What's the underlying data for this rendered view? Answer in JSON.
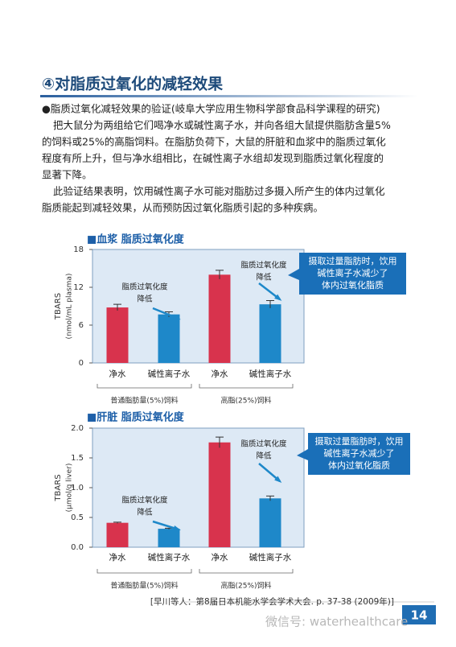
{
  "header": {
    "title": "④对脂质过氧化的减轻效果"
  },
  "paragraphs": [
    "●脂质过氧化减轻效果的验证(岐阜大学应用生物科学部食品科学课程的研究)",
    "把大鼠分为两组给它们喝净水或碱性离子水，并向各组大鼠提供脂肪含量5%",
    "的饲料或25%的高脂饲料。在脂肪负荷下，大鼠的肝脏和血浆中的脂质过氧化",
    "程度有所上升，但与净水组相比，在碱性离子水组却发现到脂质过氧化程度的",
    "显著下降。",
    "此验证结果表明，饮用碱性离子水可能对脂肪过多摄入所产生的体内过氧化",
    "脂质能起到减轻效果，从而预防因过氧化脂质引起的多种疾病。"
  ],
  "chart_data": [
    {
      "type": "bar",
      "title": "■血浆 脂质过氧化度",
      "y_label": "TBARS",
      "y_unit": "(nmol/mL plasma)",
      "categories": [
        "净水",
        "碱性离子水",
        "净水",
        "碱性离子水"
      ],
      "group_labels": [
        "普通脂肪量(5%)饲料",
        "高脂(25%)饲料"
      ],
      "values": [
        8.8,
        7.7,
        14.0,
        9.3
      ],
      "errors": [
        0.5,
        0.4,
        0.7,
        0.6
      ],
      "colors": [
        "#d8334d",
        "#1e88c9",
        "#d8334d",
        "#1e88c9"
      ],
      "ylim": [
        0,
        18
      ],
      "yticks": [
        0,
        6,
        12,
        18
      ],
      "annotations": [
        [
          "脂质过氧化度",
          "降低"
        ],
        [
          "脂质过氧化度",
          "降低"
        ]
      ],
      "callout": [
        "摄取过量脂肪时，饮用",
        "碱性离子水减少了",
        "体内过氧化脂质"
      ]
    },
    {
      "type": "bar",
      "title": "■肝脏 脂质过氧化度",
      "y_label": "TBARS",
      "y_unit": "(μmol/g liver)",
      "categories": [
        "净水",
        "碱性离子水",
        "净水",
        "碱性离子水"
      ],
      "group_labels": [
        "普通脂肪量(5%)饲料",
        "高脂(25%)饲料"
      ],
      "values": [
        0.41,
        0.31,
        1.76,
        0.82
      ],
      "errors": [
        0.01,
        0.01,
        0.09,
        0.04
      ],
      "colors": [
        "#d8334d",
        "#1e88c9",
        "#d8334d",
        "#1e88c9"
      ],
      "ylim": [
        0,
        2
      ],
      "yticks": [
        {
          "value": 0,
          "label": "0.0"
        },
        {
          "value": 0.5,
          "label": "0.5"
        },
        {
          "value": 1,
          "label": "1.0"
        },
        {
          "value": 1.5,
          "label": "1.5"
        },
        {
          "value": 2,
          "label": "2.0"
        }
      ],
      "annotations": [
        [
          "脂质过氧化度",
          "降低"
        ],
        [
          "脂质过氧化度",
          "降低"
        ]
      ],
      "callout": [
        "摄取过量脂肪时，饮用",
        "碱性离子水减少了",
        "体内过氧化脂质"
      ]
    }
  ],
  "footer": {
    "citation": "[早川等人：第8届日本机能水学会学术大会. p. 37-38 (2009年)]",
    "watermark": "微信号: waterhealthcare",
    "page_number": "14"
  }
}
